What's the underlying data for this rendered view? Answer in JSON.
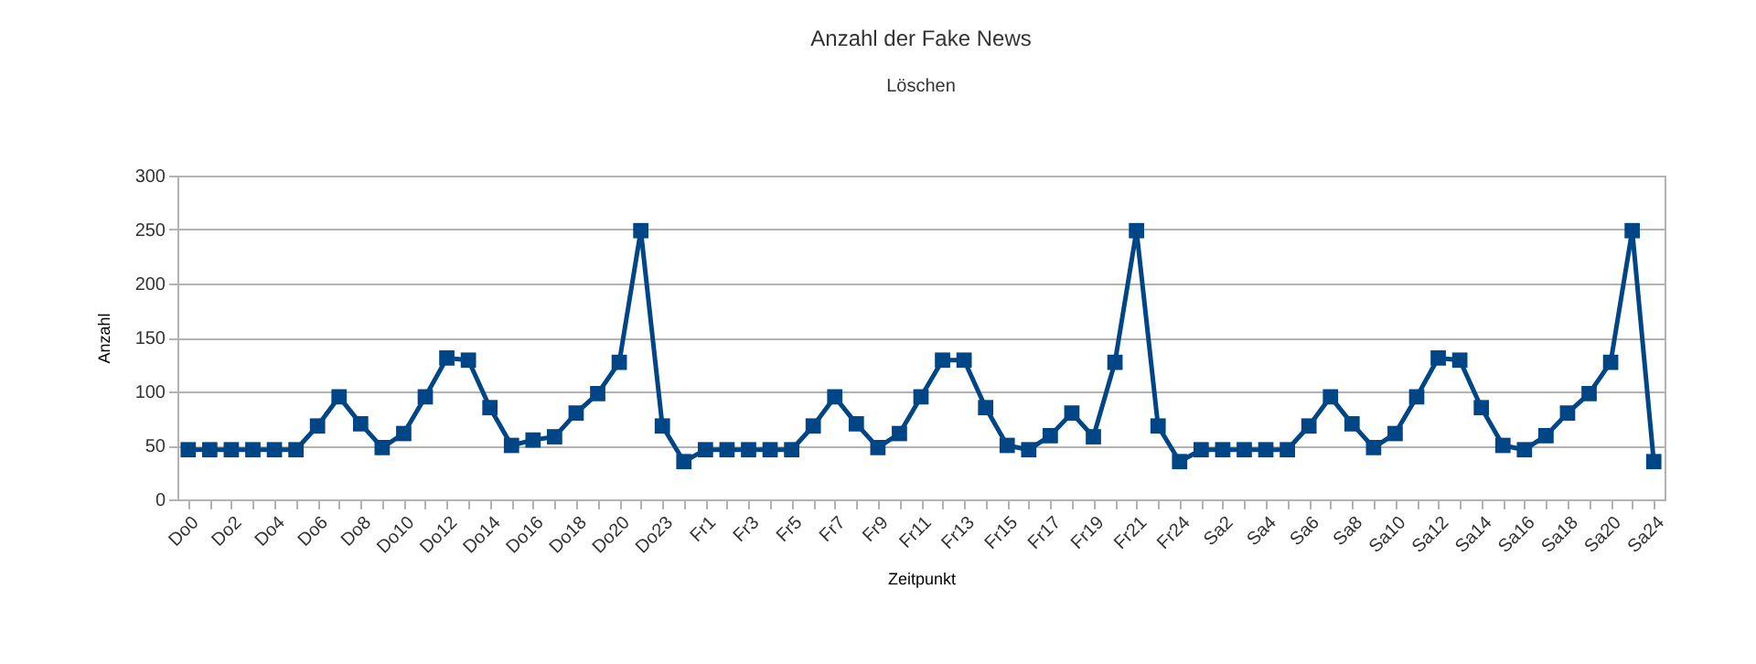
{
  "chart_data": {
    "type": "line",
    "title": "Anzahl der Fake News",
    "subtitle": "Löschen",
    "xlabel": "Zeitpunkt",
    "ylabel": "Anzahl",
    "categories": [
      "Do0",
      null,
      "Do2",
      null,
      "Do4",
      null,
      "Do6",
      null,
      "Do8",
      null,
      "Do10",
      null,
      "Do12",
      null,
      "Do14",
      null,
      "Do16",
      null,
      "Do18",
      null,
      "Do20",
      null,
      "Do23",
      null,
      "Fr1",
      null,
      "Fr3",
      null,
      "Fr5",
      null,
      "Fr7",
      null,
      "Fr9",
      null,
      "Fr11",
      null,
      "Fr13",
      null,
      "Fr15",
      null,
      "Fr17",
      null,
      "Fr19",
      null,
      "Fr21",
      null,
      "Fr24",
      null,
      "Sa2",
      null,
      "Sa4",
      null,
      "Sa6",
      null,
      "Sa8",
      null,
      "Sa10",
      null,
      "Sa12",
      null,
      "Sa14",
      null,
      "Sa16",
      null,
      "Sa18",
      null,
      "Sa20",
      null,
      "Sa24"
    ],
    "series": [
      {
        "color": "#004586",
        "values": [
          46,
          46,
          46,
          46,
          46,
          46,
          68,
          95,
          70,
          48,
          61,
          95,
          131,
          129,
          85,
          50,
          55,
          58,
          80,
          98,
          127,
          249,
          68,
          35,
          46,
          46,
          46,
          46,
          46,
          68,
          95,
          70,
          48,
          61,
          95,
          129,
          129,
          85,
          50,
          46,
          59,
          80,
          58,
          127,
          249,
          68,
          35,
          46,
          46,
          46,
          46,
          46,
          68,
          95,
          70,
          48,
          61,
          95,
          131,
          129,
          85,
          50,
          46,
          59,
          80,
          98,
          127,
          249,
          35
        ]
      }
    ],
    "ylim": [
      0,
      300
    ],
    "yticks": [
      0,
      50,
      100,
      150,
      200,
      250,
      300
    ],
    "grid": "y",
    "marker": "square",
    "line_style": "solid"
  }
}
